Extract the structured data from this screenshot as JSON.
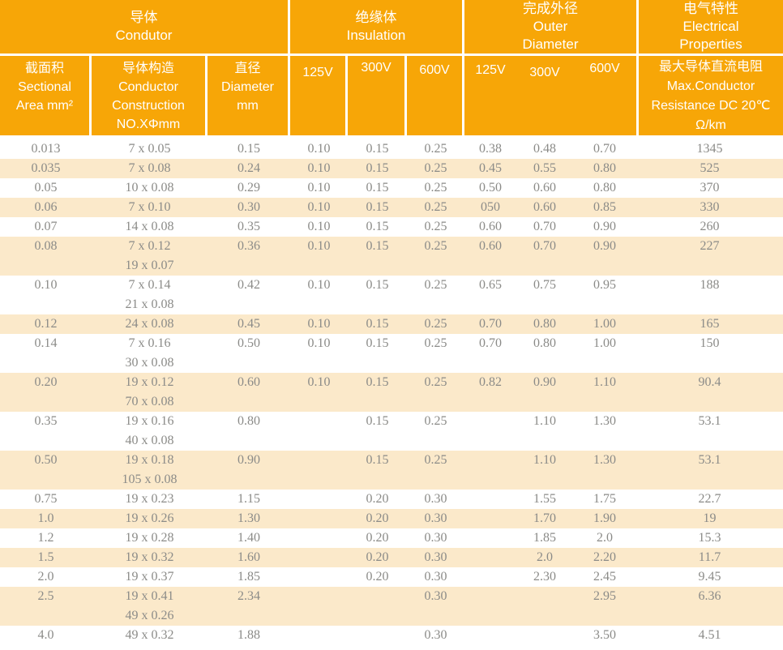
{
  "colors": {
    "header_orange": "#F7A607",
    "row_cream": "#FBE9CA",
    "row_white": "#FFFFFF",
    "data_text": "#8B8B88",
    "header_text": "#FFFFFF"
  },
  "header": {
    "groups": [
      {
        "name": "conductor",
        "lines": [
          "导体",
          "Condutor"
        ]
      },
      {
        "name": "insulation",
        "lines": [
          "绝缘体",
          "Insulation"
        ]
      },
      {
        "name": "outer-diameter",
        "lines": [
          "完成外径",
          "Outer",
          "Diameter"
        ]
      },
      {
        "name": "electrical-properties",
        "lines": [
          "电气特性",
          "Electrical",
          "Properties"
        ]
      }
    ],
    "sub": {
      "area": [
        "截面积",
        "Sectional",
        "Area mm²"
      ],
      "construction": [
        "导体构造",
        "Conductor",
        "Construction",
        "NO.XΦmm"
      ],
      "diameter": [
        "直径",
        "Diameter",
        "mm"
      ],
      "ins_voltages": [
        "125V",
        "300V",
        "600V"
      ],
      "od_voltages": [
        "125V",
        "300V",
        "600V"
      ],
      "resistance": [
        "最大导体直流电阻",
        "Max.Conductor",
        "Resistance DC 20℃",
        "Ω/km"
      ]
    }
  },
  "rows": [
    {
      "area": "0.013",
      "construction": [
        "7 x 0.05"
      ],
      "diameter": "0.15",
      "ins": [
        "0.10",
        "0.15",
        "0.25"
      ],
      "od": [
        "0.38",
        "0.48",
        "0.70"
      ],
      "resistance": "1345"
    },
    {
      "area": "0.035",
      "construction": [
        "7 x 0.08"
      ],
      "diameter": "0.24",
      "ins": [
        "0.10",
        "0.15",
        "0.25"
      ],
      "od": [
        "0.45",
        "0.55",
        "0.80"
      ],
      "resistance": "525"
    },
    {
      "area": "0.05",
      "construction": [
        "10 x 0.08"
      ],
      "diameter": "0.29",
      "ins": [
        "0.10",
        "0.15",
        "0.25"
      ],
      "od": [
        "0.50",
        "0.60",
        "0.80"
      ],
      "resistance": "370"
    },
    {
      "area": "0.06",
      "construction": [
        "7 x 0.10"
      ],
      "diameter": "0.30",
      "ins": [
        "0.10",
        "0.15",
        "0.25"
      ],
      "od": [
        "050",
        "0.60",
        "0.85"
      ],
      "resistance": "330"
    },
    {
      "area": "0.07",
      "construction": [
        "14 x 0.08"
      ],
      "diameter": "0.35",
      "ins": [
        "0.10",
        "0.15",
        "0.25"
      ],
      "od": [
        "0.60",
        "0.70",
        "0.90"
      ],
      "resistance": "260"
    },
    {
      "area": "0.08",
      "construction": [
        "7 x 0.12",
        "19 x 0.07"
      ],
      "diameter": "0.36",
      "ins": [
        "0.10",
        "0.15",
        "0.25"
      ],
      "od": [
        "0.60",
        "0.70",
        "0.90"
      ],
      "resistance": "227"
    },
    {
      "area": "0.10",
      "construction": [
        "7 x 0.14",
        "21 x 0.08"
      ],
      "diameter": "0.42",
      "ins": [
        "0.10",
        "0.15",
        "0.25"
      ],
      "od": [
        "0.65",
        "0.75",
        "0.95"
      ],
      "resistance": "188"
    },
    {
      "area": "0.12",
      "construction": [
        "24 x 0.08"
      ],
      "diameter": "0.45",
      "ins": [
        "0.10",
        "0.15",
        "0.25"
      ],
      "od": [
        "0.70",
        "0.80",
        "1.00"
      ],
      "resistance": "165"
    },
    {
      "area": "0.14",
      "construction": [
        "7 x 0.16",
        "30 x 0.08"
      ],
      "diameter": "0.50",
      "ins": [
        "0.10",
        "0.15",
        "0.25"
      ],
      "od": [
        "0.70",
        "0.80",
        "1.00"
      ],
      "resistance": "150"
    },
    {
      "area": "0.20",
      "construction": [
        "19 x 0.12",
        "70 x 0.08"
      ],
      "diameter": "0.60",
      "ins": [
        "0.10",
        "0.15",
        "0.25"
      ],
      "od": [
        "0.82",
        "0.90",
        "1.10"
      ],
      "resistance": "90.4"
    },
    {
      "area": "0.35",
      "construction": [
        "19 x 0.16",
        "40 x 0.08"
      ],
      "diameter": "0.80",
      "ins": [
        "",
        "0.15",
        "0.25"
      ],
      "od": [
        "",
        "1.10",
        "1.30"
      ],
      "resistance": "53.1"
    },
    {
      "area": "0.50",
      "construction": [
        "19 x 0.18",
        "105 x 0.08"
      ],
      "diameter": "0.90",
      "ins": [
        "",
        "0.15",
        "0.25"
      ],
      "od": [
        "",
        "1.10",
        "1.30"
      ],
      "resistance": "53.1"
    },
    {
      "area": "0.75",
      "construction": [
        "19 x 0.23"
      ],
      "diameter": "1.15",
      "ins": [
        "",
        "0.20",
        "0.30"
      ],
      "od": [
        "",
        "1.55",
        "1.75"
      ],
      "resistance": "22.7"
    },
    {
      "area": "1.0",
      "construction": [
        "19 x 0.26"
      ],
      "diameter": "1.30",
      "ins": [
        "",
        "0.20",
        "0.30"
      ],
      "od": [
        "",
        "1.70",
        "1.90"
      ],
      "resistance": "19"
    },
    {
      "area": "1.2",
      "construction": [
        "19 x 0.28"
      ],
      "diameter": "1.40",
      "ins": [
        "",
        "0.20",
        "0.30"
      ],
      "od": [
        "",
        "1.85",
        "2.0"
      ],
      "resistance": "15.3"
    },
    {
      "area": "1.5",
      "construction": [
        "19 x 0.32"
      ],
      "diameter": "1.60",
      "ins": [
        "",
        "0.20",
        "0.30"
      ],
      "od": [
        "",
        "2.0",
        "2.20"
      ],
      "resistance": "11.7"
    },
    {
      "area": "2.0",
      "construction": [
        "19 x 0.37"
      ],
      "diameter": "1.85",
      "ins": [
        "",
        "0.20",
        "0.30"
      ],
      "od": [
        "",
        "2.30",
        "2.45"
      ],
      "resistance": "9.45"
    },
    {
      "area": "2.5",
      "construction": [
        "19 x 0.41",
        "49 x 0.26"
      ],
      "diameter": "2.34",
      "ins": [
        "",
        "",
        "0.30"
      ],
      "od": [
        "",
        "",
        "2.95"
      ],
      "resistance": "6.36"
    },
    {
      "area": "4.0",
      "construction": [
        "49 x 0.32"
      ],
      "diameter": "1.88",
      "ins": [
        "",
        "",
        "0.30"
      ],
      "od": [
        "",
        "",
        "3.50"
      ],
      "resistance": "4.51"
    }
  ]
}
